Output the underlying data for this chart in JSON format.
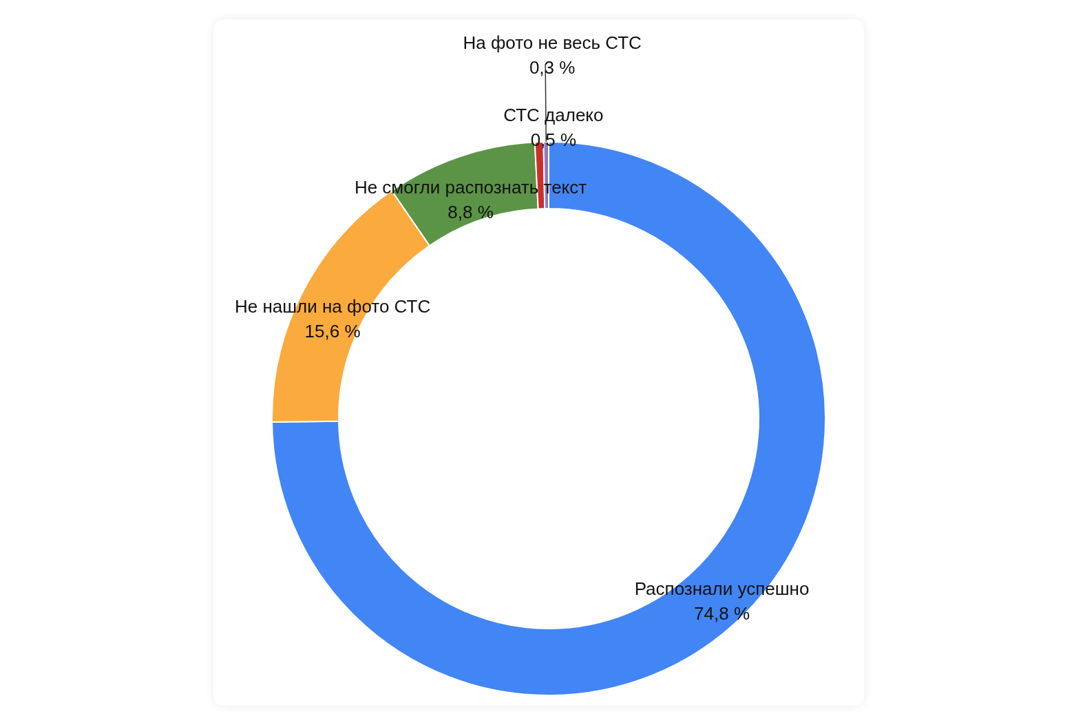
{
  "chart_data": {
    "type": "donut",
    "categories": [
      "Распознали успешно",
      "Не нашли на фото СТС",
      "Не смогли распознать текст",
      "СТС далеко",
      "На фото не весь СТС"
    ],
    "values": [
      74.8,
      15.6,
      8.8,
      0.5,
      0.3
    ],
    "colors": [
      "#4285f4",
      "#fbaa3e",
      "#5b9446",
      "#c9302c",
      "#8e7cc3"
    ],
    "value_labels": [
      "74,8 %",
      "15,6 %",
      "8,8 %",
      "0,5 %",
      "0,3 %"
    ]
  }
}
